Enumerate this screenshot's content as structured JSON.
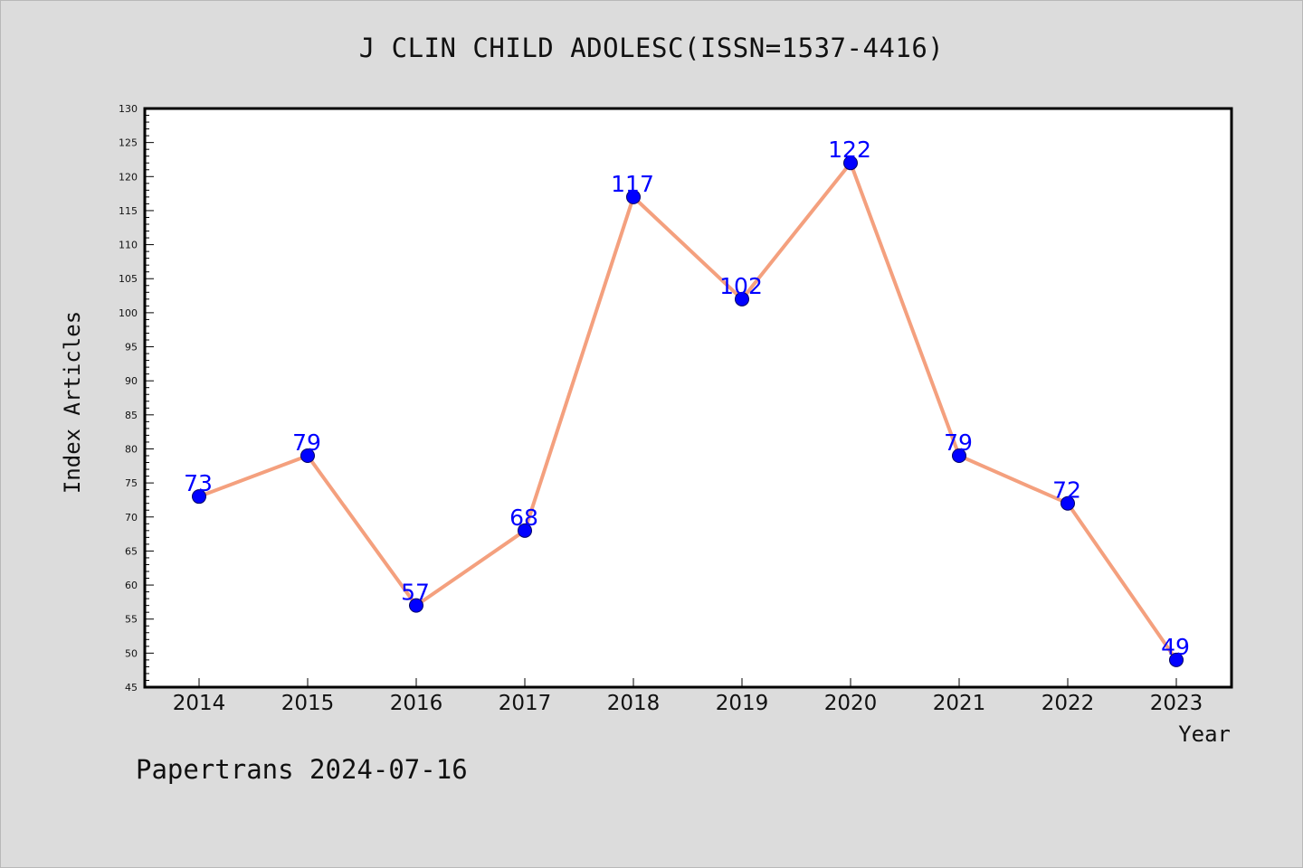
{
  "title": "J CLIN CHILD ADOLESC(ISSN=1537-4416)",
  "footer": "Papertrans 2024-07-16",
  "colors": {
    "background": "#dcdcdc",
    "plot_background": "#ffffff",
    "line": "#f4a07e",
    "marker": "#0000ff",
    "label": "#0000ff"
  },
  "chart_data": {
    "type": "line",
    "title": "J CLIN CHILD ADOLESC(ISSN=1537-4416)",
    "xlabel": "Year",
    "ylabel": "Index Articles",
    "categories": [
      "2014",
      "2015",
      "2016",
      "2017",
      "2018",
      "2019",
      "2020",
      "2021",
      "2022",
      "2023"
    ],
    "series": [
      {
        "values": [
          73,
          79,
          57,
          68,
          117,
          102,
          122,
          79,
          72,
          49
        ]
      }
    ],
    "ylim": [
      45,
      130
    ],
    "y_major_step": 5,
    "y_minor_step": 1,
    "grid": false,
    "legend": "none"
  }
}
